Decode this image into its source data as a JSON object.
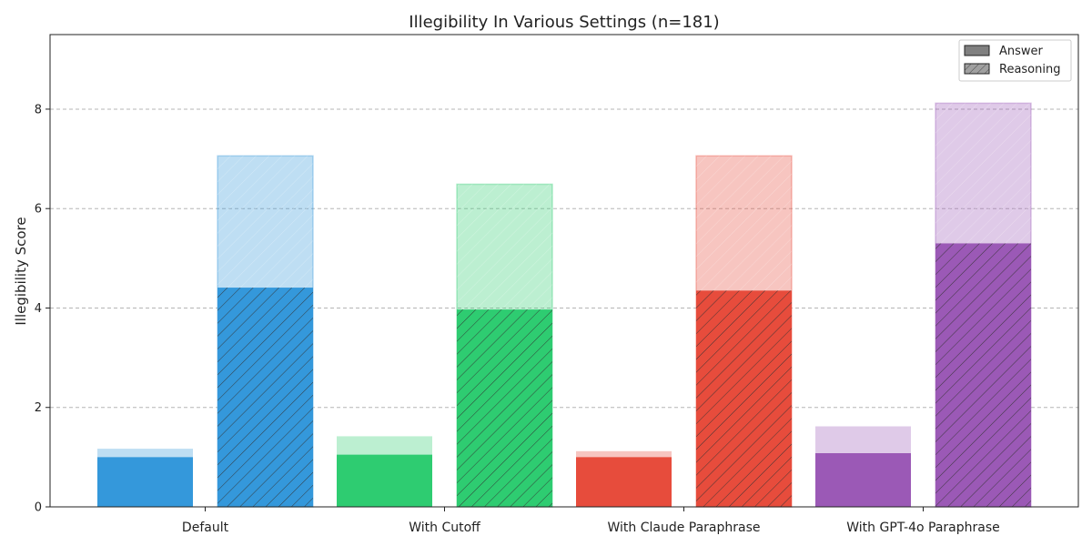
{
  "chart_data": {
    "type": "bar",
    "title": "Illegibility In Various Settings (n=181)",
    "ylabel": "Illegibility Score",
    "xlabel": "",
    "ylim": [
      0,
      9.5
    ],
    "yticks": [
      0,
      2,
      4,
      6,
      8
    ],
    "grid": true,
    "legend_placement": "top-right",
    "legend": [
      {
        "label": "Answer",
        "hatched": false
      },
      {
        "label": "Reasoning",
        "hatched": true
      }
    ],
    "categories": [
      {
        "label": "Default",
        "color": "#3498db",
        "answer": {
          "mean": 1.0,
          "upper": 1.17
        },
        "reasoning": {
          "mean": 4.41,
          "upper": 7.06
        }
      },
      {
        "label": "With Cutoff",
        "color": "#2ecc71",
        "answer": {
          "mean": 1.05,
          "upper": 1.42
        },
        "reasoning": {
          "mean": 3.97,
          "upper": 6.49
        }
      },
      {
        "label": "With Claude Paraphrase",
        "color": "#e74c3c",
        "answer": {
          "mean": 1.0,
          "upper": 1.12
        },
        "reasoning": {
          "mean": 4.35,
          "upper": 7.06
        }
      },
      {
        "label": "With GPT-4o Paraphrase",
        "color": "#9b59b6",
        "answer": {
          "mean": 1.08,
          "upper": 1.62
        },
        "reasoning": {
          "mean": 5.3,
          "upper": 8.12
        }
      }
    ]
  }
}
